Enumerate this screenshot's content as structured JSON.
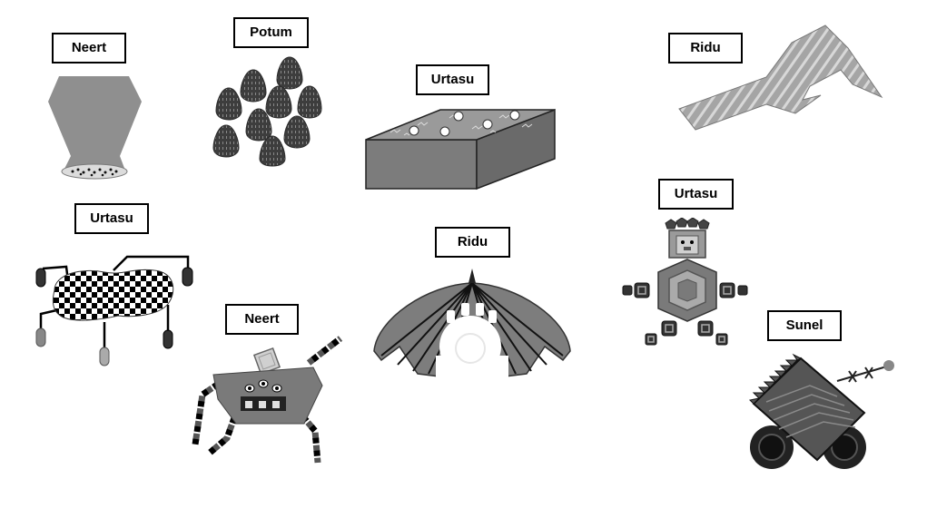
{
  "labels": {
    "neert_top": "Neert",
    "potum": "Potum",
    "urtasu_box": "Urtasu",
    "ridu_top": "Ridu",
    "urtasu_bug": "Urtasu",
    "neert_spider": "Neert",
    "ridu_dome": "Ridu",
    "urtasu_robot": "Urtasu",
    "sunel": "Sunel"
  }
}
